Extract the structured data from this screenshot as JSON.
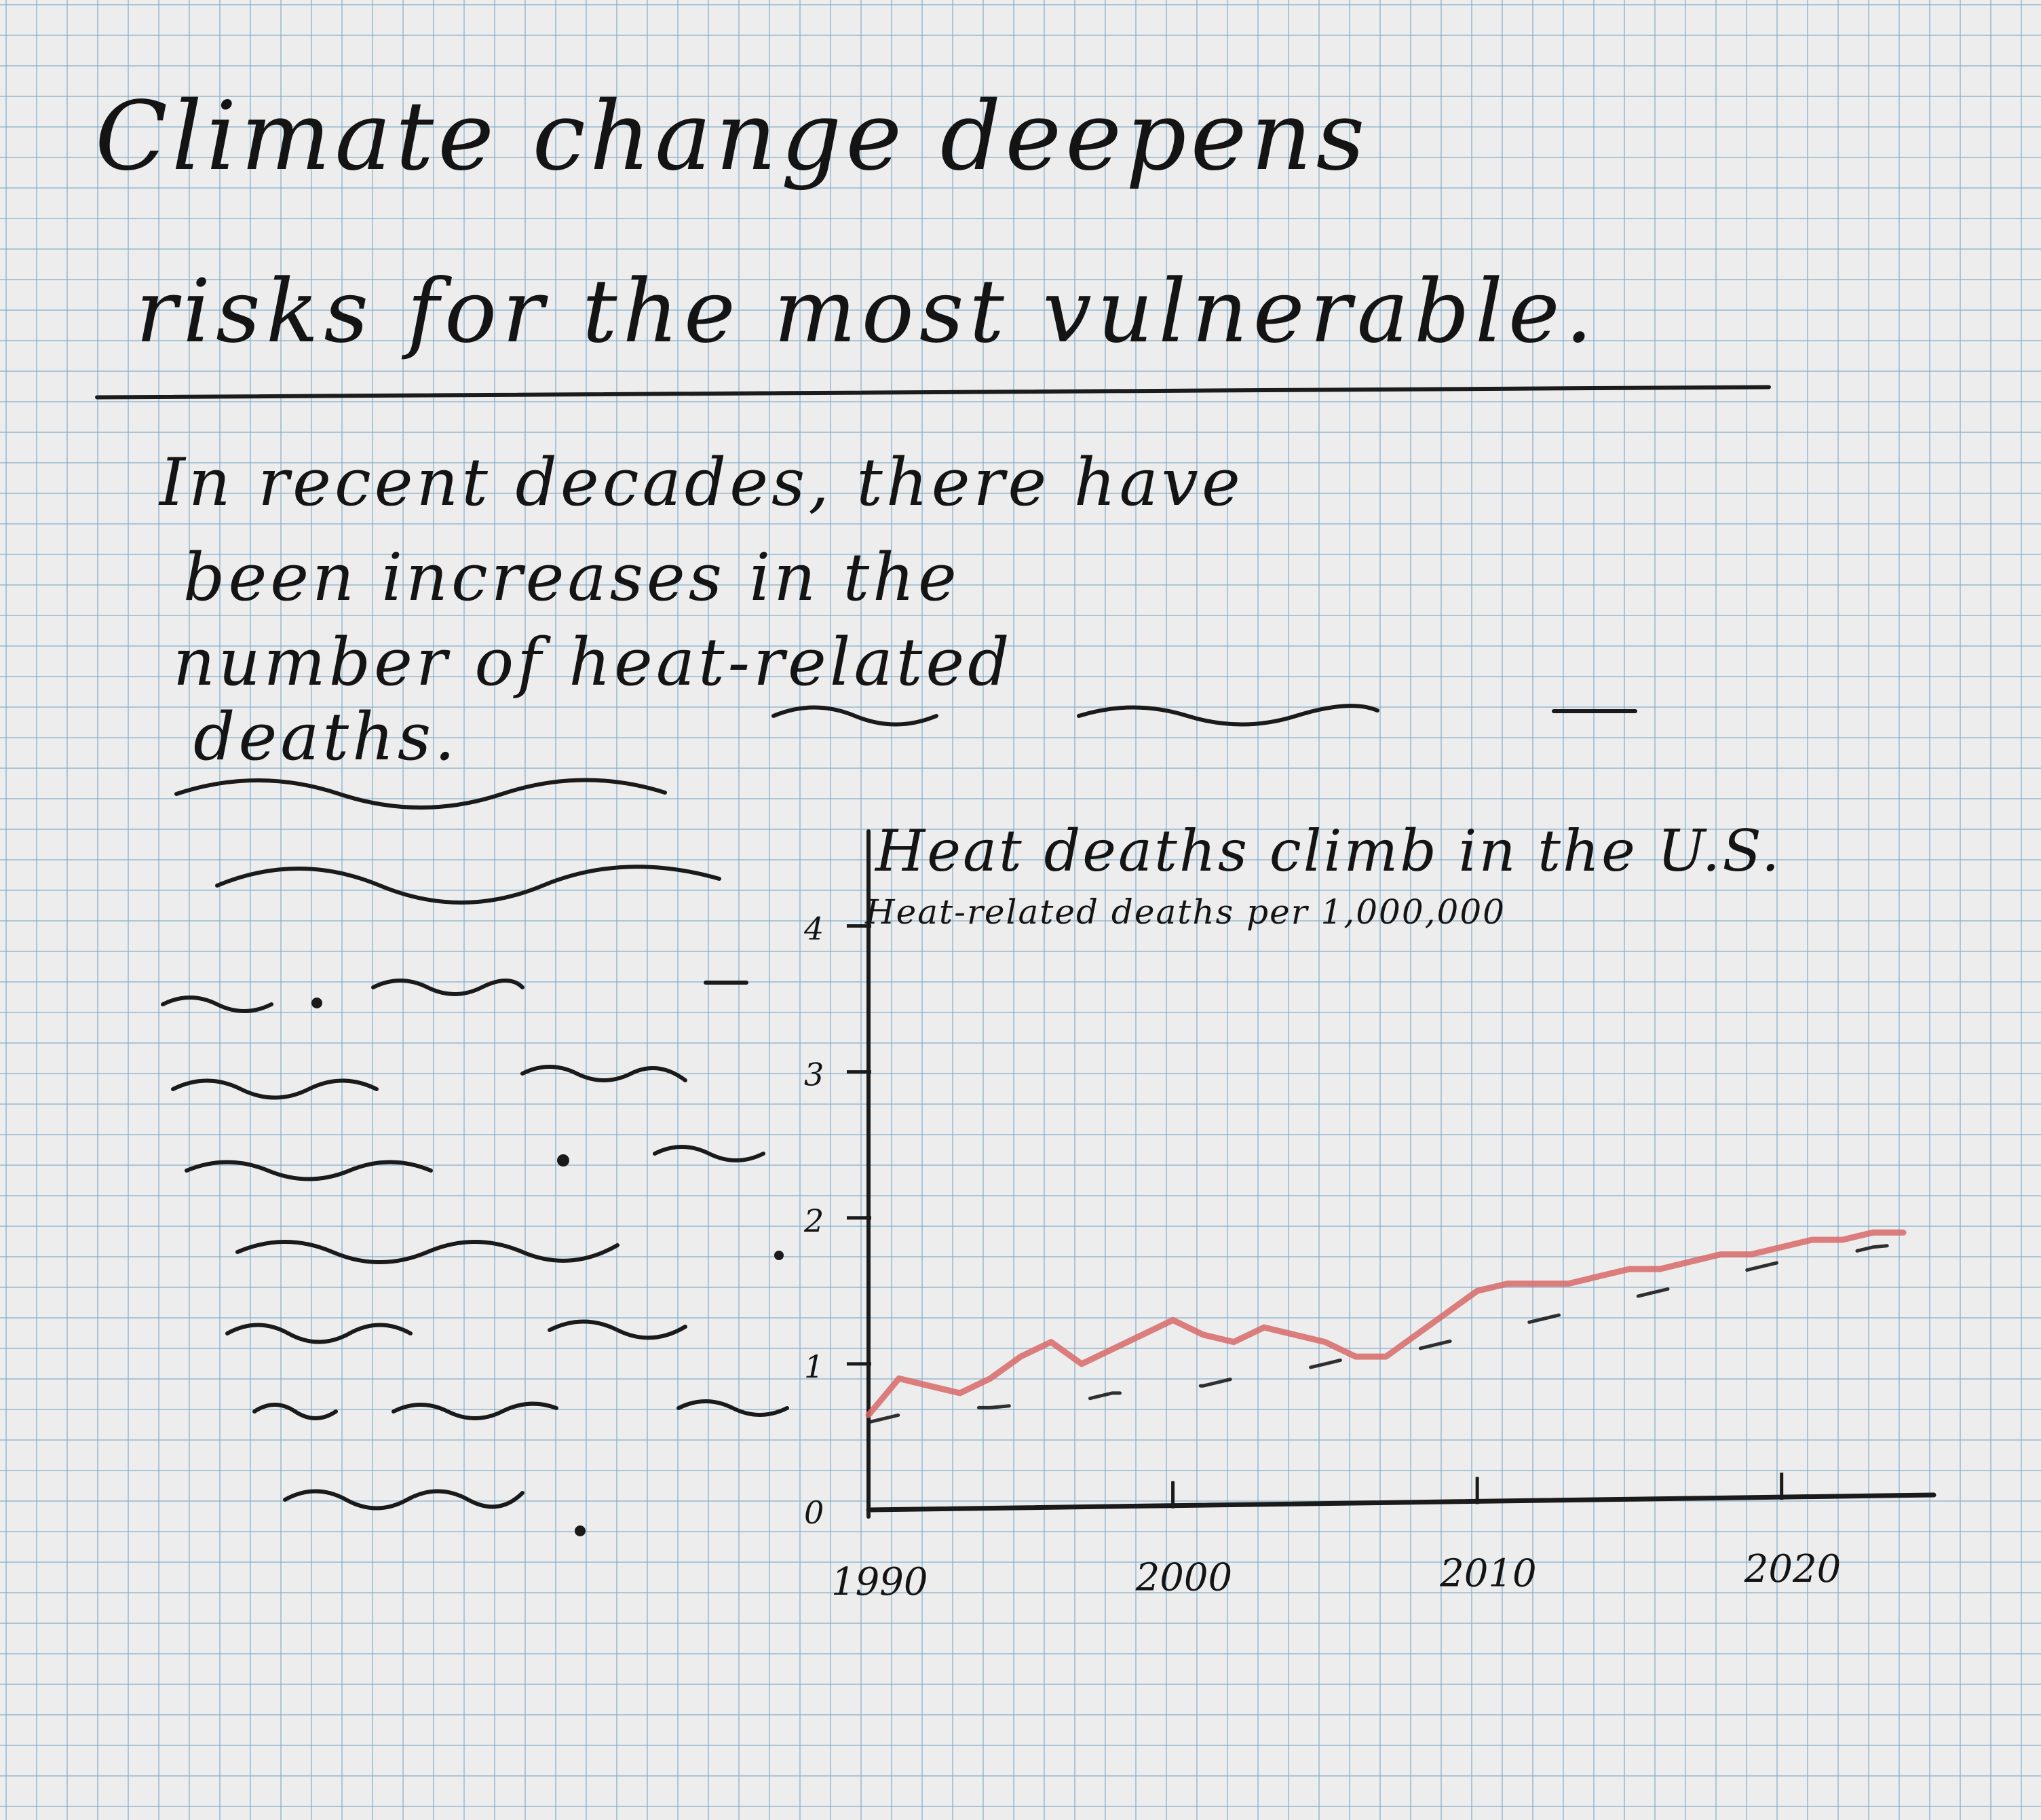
{
  "headline": {
    "line1": "Climate change deepens",
    "line2": "risks for the most vulnerable."
  },
  "intro": {
    "line1": "In recent decades, there have",
    "line2": "been increases in the",
    "line3": "number of heat-related",
    "line4": "deaths."
  },
  "chart_data": {
    "type": "line",
    "title": "Heat deaths climb in the U.S.",
    "subtitle": "Heat-related deaths per 1,000,000",
    "xlabel": "",
    "ylabel": "",
    "x_ticks": [
      1990,
      2000,
      2010,
      2020
    ],
    "y_ticks": [
      0,
      1,
      2,
      3,
      4
    ],
    "xlim": [
      1990,
      2025
    ],
    "ylim": [
      0,
      4.3
    ],
    "grid": false,
    "series": [
      {
        "color": "#d9686a",
        "x": [
          1990,
          1991,
          1992,
          1993,
          1994,
          1995,
          1996,
          1997,
          1998,
          1999,
          2000,
          2001,
          2002,
          2003,
          2004,
          2005,
          2006,
          2007,
          2008,
          2009,
          2010,
          2011,
          2012,
          2013,
          2014,
          2015,
          2016,
          2017,
          2018,
          2019,
          2020,
          2021,
          2022,
          2023,
          2024
        ],
        "y": [
          0.65,
          0.9,
          0.85,
          0.8,
          0.9,
          1.05,
          1.15,
          1.0,
          1.1,
          1.2,
          1.3,
          1.2,
          1.15,
          1.25,
          1.2,
          1.15,
          1.05,
          1.05,
          1.2,
          1.35,
          1.5,
          1.55,
          1.55,
          1.55,
          1.6,
          1.65,
          1.65,
          1.7,
          1.75,
          1.75,
          1.8,
          1.85,
          1.85,
          1.9,
          1.9
        ]
      },
      {
        "color": "#1a1a1a",
        "style": "dashed",
        "x": [
          1990,
          1991,
          1992,
          1993,
          1994,
          1995,
          1996,
          1997,
          1998,
          1999,
          2000,
          2001,
          2002,
          2003,
          2004,
          2005,
          2006,
          2007,
          2008,
          2009,
          2010,
          2011,
          2012,
          2013,
          2014,
          2015,
          2016,
          2017,
          2018,
          2019,
          2020,
          2021,
          2022,
          2023,
          2024
        ],
        "y": [
          0.6,
          0.65,
          0.65,
          0.7,
          0.7,
          0.72,
          0.75,
          0.75,
          0.8,
          0.8,
          0.85,
          0.85,
          0.9,
          0.92,
          0.95,
          1.0,
          1.05,
          1.05,
          1.1,
          1.15,
          1.2,
          1.25,
          1.3,
          1.35,
          1.4,
          1.45,
          1.5,
          1.55,
          1.6,
          1.65,
          1.7,
          1.72,
          1.75,
          1.8,
          1.82
        ]
      }
    ]
  }
}
